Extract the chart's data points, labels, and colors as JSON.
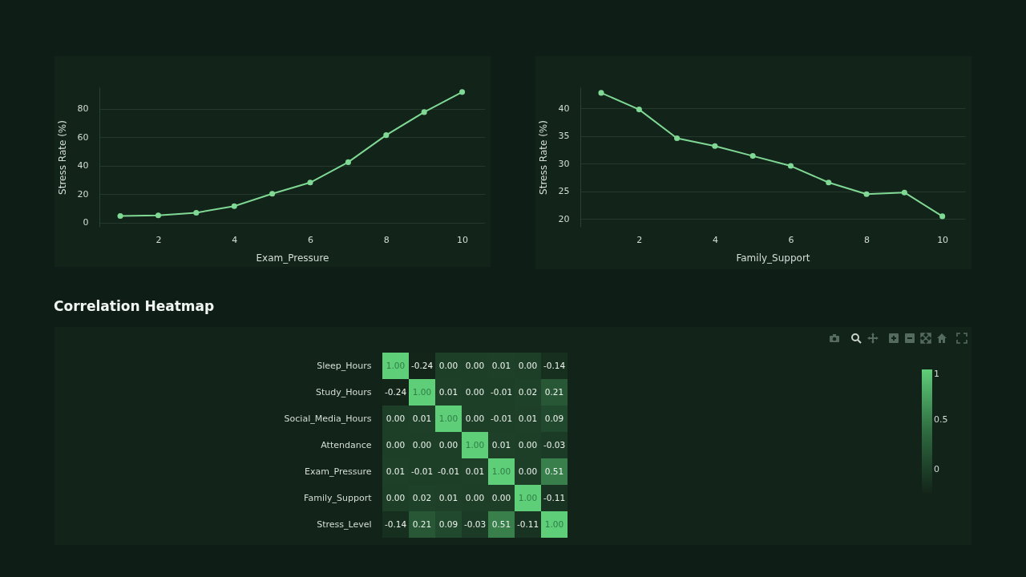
{
  "chart_data": [
    {
      "type": "line",
      "xlabel": "Exam_Pressure",
      "ylabel": "Stress Rate (%)",
      "x": [
        1,
        2,
        3,
        4,
        5,
        6,
        7,
        8,
        9,
        10
      ],
      "series": [
        {
          "color": "#7fd893",
          "values": [
            4.6,
            5,
            6.9,
            11.5,
            20.2,
            28.1,
            42.4,
            61.4,
            77.6,
            91.7
          ]
        }
      ],
      "xlim": [
        0.45,
        10.6
      ],
      "ylim": [
        -3,
        95
      ],
      "xticks": [
        2,
        4,
        6,
        8,
        10
      ],
      "yticks": [
        0,
        20,
        40,
        60,
        80
      ],
      "grid": "y",
      "marker": "circle"
    },
    {
      "type": "line",
      "xlabel": "Family_Support",
      "ylabel": "Stress Rate (%)",
      "x": [
        1,
        2,
        3,
        4,
        5,
        6,
        7,
        8,
        9,
        10
      ],
      "series": [
        {
          "color": "#7fd893",
          "values": [
            42.8,
            39.8,
            34.6,
            33.2,
            31.4,
            29.6,
            26.6,
            24.5,
            24.8,
            20.5
          ]
        }
      ],
      "xlim": [
        0.45,
        10.6
      ],
      "ylim": [
        18.6,
        43.8
      ],
      "xticks": [
        2,
        4,
        6,
        8,
        10
      ],
      "yticks": [
        20,
        25,
        30,
        35,
        40
      ],
      "grid": "y",
      "marker": "circle"
    },
    {
      "type": "heatmap",
      "title": "Correlation Heatmap",
      "categories": [
        null,
        null,
        null,
        null,
        null,
        null,
        null
      ],
      "y_categories": [
        "Sleep_Hours",
        "Study_Hours",
        "Social_Media_Hours",
        "Attendance",
        "Exam_Pressure",
        "Family_Support",
        "Stress_Level"
      ],
      "cells": [
        [
          1,
          -0.24,
          0,
          0,
          0.01,
          0,
          -0.14
        ],
        [
          -0.24,
          1,
          0.01,
          0,
          -0.01,
          0.02,
          0.21
        ],
        [
          0,
          0.01,
          1,
          0,
          -0.01,
          0.01,
          0.09
        ],
        [
          0,
          0,
          0,
          1,
          0.01,
          0,
          -0.03
        ],
        [
          0.01,
          -0.01,
          -0.01,
          0.01,
          1,
          0,
          0.51
        ],
        [
          0,
          0.02,
          0.01,
          0,
          0,
          1,
          -0.11
        ],
        [
          -0.14,
          0.21,
          0.09,
          -0.03,
          0.51,
          -0.11,
          1
        ]
      ],
      "cell_labels": [
        [
          "1.00",
          "-0.24",
          "0.00",
          "0.00",
          "0.01",
          "0.00",
          "-0.14"
        ],
        [
          "-0.24",
          "1.00",
          "0.01",
          "0.00",
          "-0.01",
          "0.02",
          "0.21"
        ],
        [
          "0.00",
          "0.01",
          "1.00",
          "0.00",
          "-0.01",
          "0.01",
          "0.09"
        ],
        [
          "0.00",
          "0.00",
          "0.00",
          "1.00",
          "0.01",
          "0.00",
          "-0.03"
        ],
        [
          "0.01",
          "-0.01",
          "-0.01",
          "0.01",
          "1.00",
          "0.00",
          "0.51"
        ],
        [
          "0.00",
          "0.02",
          "0.01",
          "0.00",
          "0.00",
          "1.00",
          "-0.11"
        ],
        [
          "-0.14",
          "0.21",
          "0.09",
          "-0.03",
          "0.51",
          "-0.11",
          "1.00"
        ]
      ],
      "clim": [
        -0.24,
        1
      ],
      "cticks": [
        0,
        0.5,
        1
      ],
      "tick_labels": "y"
    }
  ]
}
